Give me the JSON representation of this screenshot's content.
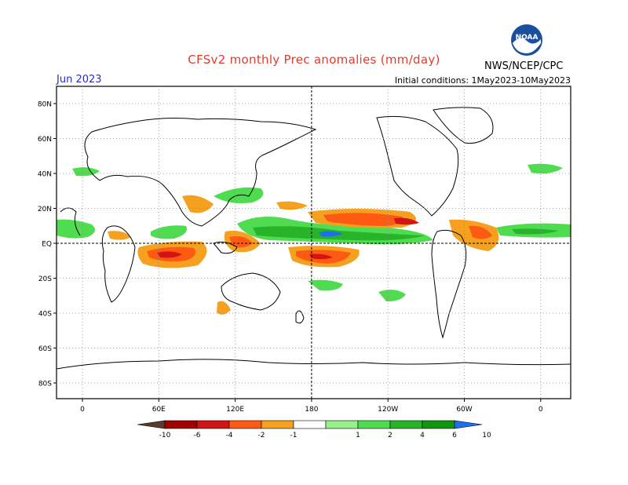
{
  "header": {
    "title": "CFSv2 monthly Prec anomalies (mm/day)",
    "month": "Jun 2023",
    "init_conditions": "Initial conditions: 1May2023-10May2023",
    "agency": "NWS/NCEP/CPC",
    "logo_text": "NOAA",
    "logo_icon": "noaa-logo-icon"
  },
  "map": {
    "projection": "equirectangular",
    "lon_ticks": [
      "0",
      "60E",
      "120E",
      "180",
      "120W",
      "60W",
      "0"
    ],
    "lat_ticks": [
      "80N",
      "60N",
      "40N",
      "20N",
      "EQ",
      "20S",
      "40S",
      "60S",
      "80S"
    ],
    "grid": "dotted",
    "reference_lines": [
      "EQ",
      "180"
    ],
    "field": "precipitation anomaly"
  },
  "colorbar": {
    "labels": [
      "-10",
      "-6",
      "-4",
      "-2",
      "-1",
      "1",
      "2",
      "4",
      "6",
      "10"
    ],
    "colors": [
      "#5a3a2a",
      "#a00000",
      "#d21414",
      "#ff5a14",
      "#f5a01e",
      "#ffffff",
      "#96f08c",
      "#50dc50",
      "#28b428",
      "#109610",
      "#1e6ef0"
    ]
  }
}
